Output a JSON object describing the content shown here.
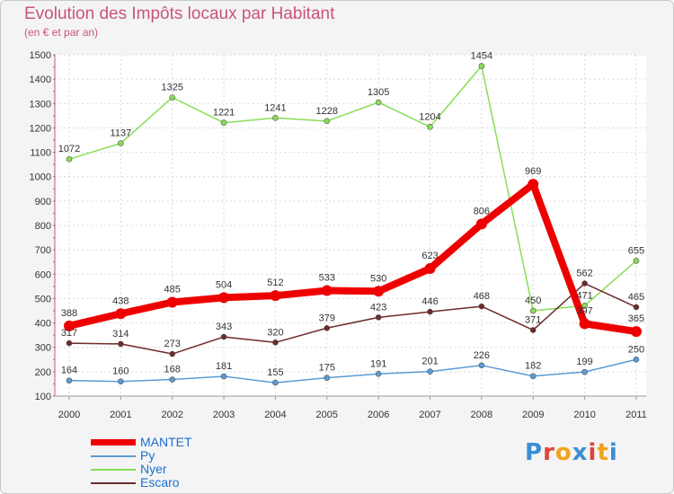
{
  "chart_data": {
    "type": "line",
    "title": "Evolution des Impôts locaux par Habitant",
    "subtitle": "(en € et par an)",
    "xlabel": "",
    "ylabel": "",
    "categories": [
      "2000",
      "2001",
      "2002",
      "2003",
      "2004",
      "2005",
      "2006",
      "2007",
      "2008",
      "2009",
      "2010",
      "2011"
    ],
    "yticks": [
      100,
      200,
      300,
      400,
      500,
      600,
      700,
      800,
      900,
      1000,
      1100,
      1200,
      1300,
      1400,
      1500
    ],
    "ylim": [
      100,
      1500
    ],
    "grid": true,
    "legend_position": "bottom-left",
    "series": [
      {
        "name": "Nyer",
        "color": "#88dd55",
        "values": [
          1072,
          1137,
          1325,
          1221,
          1241,
          1228,
          1305,
          1204,
          1454,
          450,
          471,
          655
        ],
        "labels": [
          "1072",
          "1137",
          "1325",
          "1221",
          "1241",
          "1228",
          "1305",
          "1204",
          "1454",
          "450",
          "471",
          "655"
        ]
      },
      {
        "name": "Escaro",
        "color": "#6e2a2a",
        "values": [
          317,
          314,
          273,
          343,
          320,
          379,
          423,
          446,
          468,
          371,
          562,
          465
        ],
        "labels": [
          "317",
          "314",
          "273",
          "343",
          "320",
          "379",
          "423",
          "446",
          "468",
          "371",
          "562",
          "465"
        ]
      },
      {
        "name": "Py",
        "color": "#5b9bd5",
        "values": [
          164,
          160,
          168,
          181,
          155,
          175,
          191,
          201,
          226,
          182,
          199,
          250
        ],
        "labels": [
          "164",
          "160",
          "168",
          "181",
          "155",
          "175",
          "191",
          "201",
          "226",
          "182",
          "199",
          "250"
        ]
      },
      {
        "name": "MANTET",
        "color": "#ee0000",
        "values": [
          388,
          438,
          485,
          504,
          512,
          533,
          530,
          623,
          806,
          969,
          397,
          365
        ],
        "labels": [
          "388",
          "438",
          "485",
          "504",
          "512",
          "533",
          "530",
          "623",
          "806",
          "969",
          "397",
          "365"
        ]
      }
    ]
  },
  "legend": [
    {
      "name": "MANTET",
      "color": "#ee0000"
    },
    {
      "name": "Py",
      "color": "#5b9bd5"
    },
    {
      "name": "Nyer",
      "color": "#88dd55"
    },
    {
      "name": "Escaro",
      "color": "#6e2a2a"
    }
  ],
  "brand": {
    "text": "Proxiti",
    "letters": [
      {
        "ch": "P",
        "color": "#3a8fd6"
      },
      {
        "ch": "r",
        "color": "#e0453a"
      },
      {
        "ch": "o",
        "color": "#f2a31b"
      },
      {
        "ch": "x",
        "color": "#3a8fd6"
      },
      {
        "ch": "i",
        "color": "#e0453a"
      },
      {
        "ch": "t",
        "color": "#f2a31b"
      },
      {
        "ch": "i",
        "color": "#3a8fd6"
      }
    ]
  }
}
